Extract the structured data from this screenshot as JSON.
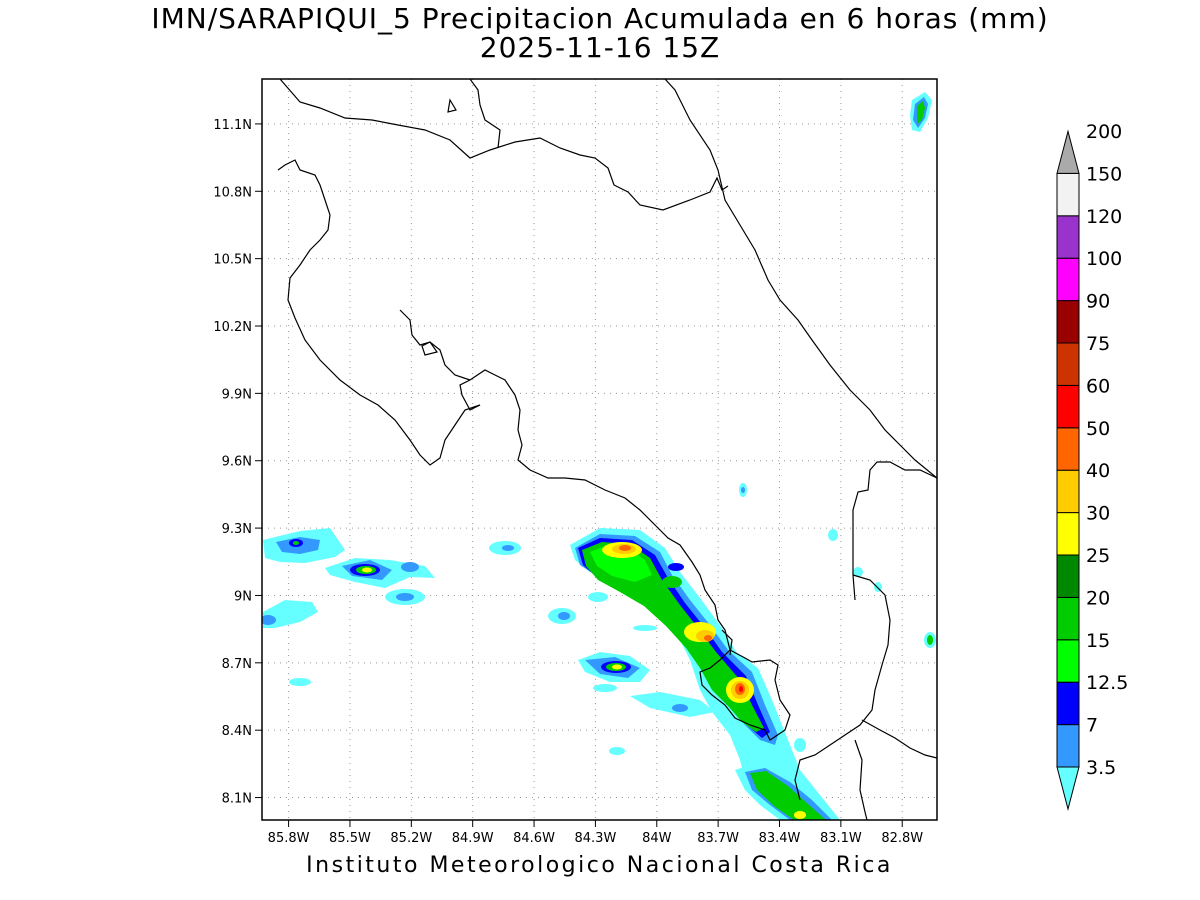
{
  "title": {
    "line1": "IMN/SARAPIQUI_5 Precipitacion Acumulada en 6 horas (mm)",
    "line2": "2025-11-16 15Z"
  },
  "credit": "Instituto Meteorologico Nacional Costa Rica",
  "axes": {
    "x_ticks": [
      "85.8W",
      "85.5W",
      "85.2W",
      "84.9W",
      "84.6W",
      "84.3W",
      "84W",
      "83.7W",
      "83.4W",
      "83.1W",
      "82.8W"
    ],
    "y_ticks": [
      "11.1N",
      "10.8N",
      "10.5N",
      "10.2N",
      "9.9N",
      "9.6N",
      "9.3N",
      "9N",
      "8.7N",
      "8.4N",
      "8.1N"
    ],
    "lon_values": [
      -85.8,
      -85.5,
      -85.2,
      -84.9,
      -84.6,
      -84.3,
      -84.0,
      -83.7,
      -83.4,
      -83.1,
      -82.8
    ],
    "lat_values": [
      11.1,
      10.8,
      10.5,
      10.2,
      9.9,
      9.6,
      9.3,
      9.0,
      8.7,
      8.4,
      8.1
    ],
    "lon_range": [
      -85.93,
      -82.63
    ],
    "lat_range": [
      8.0,
      11.3
    ],
    "grid": "dotted"
  },
  "colorbar": {
    "labels": [
      "3.5",
      "7",
      "12.5",
      "15",
      "20",
      "25",
      "30",
      "40",
      "50",
      "60",
      "75",
      "90",
      "100",
      "120",
      "150",
      "200"
    ],
    "colors": [
      "#66ffff",
      "#3399ff",
      "#0000ff",
      "#00ff00",
      "#00cc00",
      "#008800",
      "#ffff00",
      "#ffcc00",
      "#ff6600",
      "#ff0000",
      "#cc3300",
      "#990000",
      "#ff00ff",
      "#9933cc",
      "#f2f2f2",
      "#aaaaaa"
    ]
  }
}
